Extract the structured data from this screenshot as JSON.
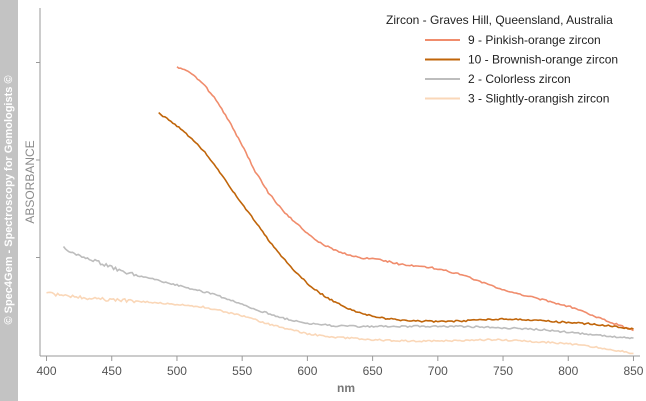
{
  "watermark": "© Spec4Gem - Spectroscopy for Gemologists ©",
  "chart_data": {
    "type": "line",
    "title": "Zircon - Graves Hill, Queensland, Australia",
    "xlabel": "nm",
    "ylabel": "ABSORBANCE",
    "xlim": [
      395,
      855
    ],
    "ylim": [
      0,
      1
    ],
    "x_ticks": [
      400,
      450,
      500,
      550,
      600,
      650,
      700,
      750,
      800,
      850
    ],
    "y_ticks_labeled": false,
    "grid": false,
    "legend_position": "top-right",
    "series": [
      {
        "name": "9 - Pinkish-orange zircon",
        "color": "#f08c6c",
        "x": [
          500,
          510,
          520,
          530,
          540,
          550,
          560,
          570,
          580,
          590,
          600,
          610,
          620,
          630,
          640,
          650,
          660,
          670,
          680,
          690,
          700,
          720,
          740,
          760,
          780,
          800,
          820,
          840,
          850
        ],
        "y": [
          0.885,
          0.87,
          0.835,
          0.785,
          0.72,
          0.645,
          0.565,
          0.5,
          0.45,
          0.41,
          0.375,
          0.345,
          0.325,
          0.31,
          0.3,
          0.295,
          0.29,
          0.28,
          0.275,
          0.272,
          0.265,
          0.245,
          0.215,
          0.19,
          0.17,
          0.15,
          0.12,
          0.09,
          0.075
        ]
      },
      {
        "name": "10 - Brownish-orange zircon",
        "color": "#c0650a",
        "x": [
          486,
          500,
          510,
          520,
          530,
          540,
          550,
          560,
          570,
          580,
          590,
          600,
          610,
          620,
          630,
          640,
          650,
          660,
          670,
          680,
          700,
          720,
          740,
          760,
          780,
          800,
          820,
          840,
          850
        ],
        "y": [
          0.745,
          0.705,
          0.67,
          0.63,
          0.58,
          0.52,
          0.465,
          0.41,
          0.355,
          0.305,
          0.26,
          0.22,
          0.19,
          0.165,
          0.145,
          0.13,
          0.12,
          0.112,
          0.108,
          0.105,
          0.103,
          0.105,
          0.11,
          0.11,
          0.105,
          0.1,
          0.095,
          0.085,
          0.08
        ]
      },
      {
        "name": "2 - Colorless zircon",
        "color": "#bdbdbd",
        "x": [
          413,
          420,
          430,
          440,
          450,
          460,
          470,
          480,
          490,
          500,
          510,
          520,
          530,
          540,
          550,
          560,
          570,
          580,
          590,
          600,
          620,
          640,
          660,
          680,
          700,
          720,
          740,
          760,
          780,
          800,
          820,
          840,
          850
        ],
        "y": [
          0.33,
          0.315,
          0.3,
          0.285,
          0.27,
          0.255,
          0.245,
          0.235,
          0.225,
          0.215,
          0.205,
          0.195,
          0.185,
          0.17,
          0.155,
          0.14,
          0.128,
          0.115,
          0.105,
          0.098,
          0.09,
          0.088,
          0.088,
          0.088,
          0.088,
          0.088,
          0.085,
          0.082,
          0.078,
          0.07,
          0.062,
          0.055,
          0.052
        ]
      },
      {
        "name": "3 - Slightly-orangish zircon",
        "color": "#fad7b8",
        "x": [
          400,
          410,
          420,
          430,
          440,
          450,
          460,
          470,
          480,
          490,
          500,
          510,
          520,
          530,
          540,
          550,
          560,
          570,
          580,
          590,
          600,
          620,
          640,
          660,
          680,
          700,
          720,
          740,
          760,
          780,
          800,
          820,
          840,
          850
        ],
        "y": [
          0.19,
          0.185,
          0.18,
          0.175,
          0.172,
          0.17,
          0.168,
          0.165,
          0.162,
          0.158,
          0.155,
          0.152,
          0.148,
          0.14,
          0.13,
          0.12,
          0.108,
          0.096,
          0.085,
          0.075,
          0.065,
          0.055,
          0.05,
          0.045,
          0.043,
          0.043,
          0.045,
          0.047,
          0.045,
          0.04,
          0.035,
          0.025,
          0.012,
          0.005
        ]
      }
    ]
  }
}
